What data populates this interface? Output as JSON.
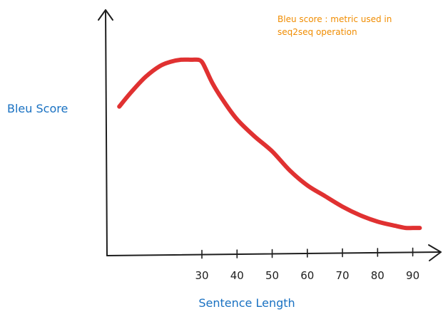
{
  "chart_data": {
    "type": "line",
    "title": "",
    "xlabel": "Sentence Length",
    "ylabel": "Bleu Score",
    "annotation": [
      "Bleu score : metric used in",
      "seq2seq operation"
    ],
    "x_ticks": [
      "30",
      "40",
      "50",
      "60",
      "70",
      "80",
      "90"
    ],
    "x_tick_values": [
      30,
      40,
      50,
      60,
      70,
      80,
      90
    ],
    "xlim": [
      3,
      98
    ],
    "y_axis_numbered": false,
    "ylim": [
      0,
      1
    ],
    "grid": false,
    "series": [
      {
        "x": [
          6.5,
          10,
          14,
          18,
          21,
          24,
          27,
          29,
          30,
          31,
          33,
          36,
          40,
          45,
          50,
          55,
          60,
          65,
          70,
          75,
          80,
          85,
          88,
          90,
          92
        ],
        "y": [
          0.7,
          0.77,
          0.84,
          0.89,
          0.91,
          0.92,
          0.92,
          0.92,
          0.91,
          0.88,
          0.81,
          0.73,
          0.64,
          0.56,
          0.49,
          0.4,
          0.33,
          0.28,
          0.23,
          0.19,
          0.16,
          0.14,
          0.13,
          0.13,
          0.13
        ]
      }
    ],
    "colors": {
      "line": "#e03131",
      "axis": "#1e1e1e",
      "label": "#1971c2",
      "annotation": "#f08c00"
    }
  }
}
